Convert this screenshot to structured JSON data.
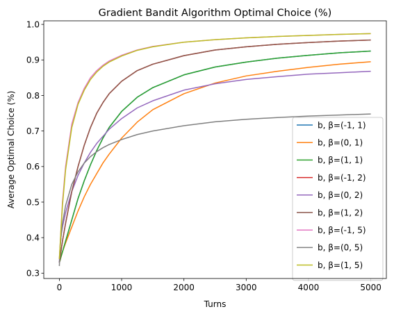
{
  "chart_data": {
    "type": "line",
    "title": "Gradient Bandit Algorithm Optimal Choice (%)",
    "xlabel": "Turns",
    "ylabel": "Average Optimal Choice (%)",
    "xlim": [
      -250,
      5250
    ],
    "ylim": [
      0.285,
      1.01
    ],
    "xticks": [
      0,
      1000,
      2000,
      3000,
      4000,
      5000
    ],
    "yticks": [
      0.3,
      0.4,
      0.5,
      0.6,
      0.7,
      0.8,
      0.9,
      1.0
    ],
    "xtick_labels": [
      "0",
      "1000",
      "2000",
      "3000",
      "4000",
      "5000"
    ],
    "ytick_labels": [
      "0.3",
      "0.4",
      "0.5",
      "0.6",
      "0.7",
      "0.8",
      "0.9",
      "1.0"
    ],
    "grid": false,
    "legend_position": "lower-right",
    "x": [
      0,
      10,
      25,
      50,
      100,
      200,
      300,
      400,
      500,
      600,
      700,
      800,
      1000,
      1250,
      1500,
      2000,
      2500,
      3000,
      3500,
      4000,
      4500,
      5000
    ],
    "series": [
      {
        "name": "b, β=(-1, 1)",
        "color": "#1f77b4",
        "values": [
          0.33,
          0.335,
          0.345,
          0.36,
          0.39,
          0.45,
          0.51,
          0.56,
          0.605,
          0.645,
          0.68,
          0.71,
          0.755,
          0.795,
          0.822,
          0.858,
          0.88,
          0.894,
          0.905,
          0.913,
          0.92,
          0.925
        ]
      },
      {
        "name": "b, β=(0, 1)",
        "color": "#ff7f0e",
        "values": [
          0.33,
          0.335,
          0.345,
          0.36,
          0.385,
          0.43,
          0.475,
          0.515,
          0.55,
          0.58,
          0.61,
          0.635,
          0.68,
          0.725,
          0.76,
          0.805,
          0.835,
          0.855,
          0.868,
          0.879,
          0.888,
          0.895
        ]
      },
      {
        "name": "b, β=(1, 1)",
        "color": "#2ca02c",
        "values": [
          0.33,
          0.335,
          0.345,
          0.36,
          0.39,
          0.45,
          0.51,
          0.56,
          0.605,
          0.645,
          0.68,
          0.71,
          0.755,
          0.795,
          0.822,
          0.858,
          0.88,
          0.894,
          0.905,
          0.913,
          0.92,
          0.925
        ]
      },
      {
        "name": "b, β=(-1, 2)",
        "color": "#d62728",
        "values": [
          0.33,
          0.34,
          0.36,
          0.39,
          0.44,
          0.53,
          0.6,
          0.66,
          0.71,
          0.75,
          0.78,
          0.805,
          0.84,
          0.87,
          0.888,
          0.912,
          0.928,
          0.937,
          0.944,
          0.949,
          0.953,
          0.956
        ]
      },
      {
        "name": "b, β=(0, 2)",
        "color": "#9467bd",
        "values": [
          0.33,
          0.37,
          0.4,
          0.43,
          0.47,
          0.53,
          0.575,
          0.61,
          0.64,
          0.665,
          0.685,
          0.705,
          0.735,
          0.765,
          0.785,
          0.815,
          0.833,
          0.845,
          0.853,
          0.86,
          0.864,
          0.868
        ]
      },
      {
        "name": "b, β=(1, 2)",
        "color": "#8c564b",
        "values": [
          0.33,
          0.34,
          0.36,
          0.39,
          0.44,
          0.53,
          0.6,
          0.66,
          0.71,
          0.75,
          0.78,
          0.805,
          0.84,
          0.87,
          0.888,
          0.912,
          0.928,
          0.937,
          0.944,
          0.949,
          0.953,
          0.956
        ]
      },
      {
        "name": "b, β=(-1, 5)",
        "color": "#e377c2",
        "values": [
          0.34,
          0.37,
          0.42,
          0.5,
          0.6,
          0.72,
          0.78,
          0.82,
          0.85,
          0.87,
          0.885,
          0.897,
          0.913,
          0.928,
          0.938,
          0.95,
          0.957,
          0.962,
          0.966,
          0.969,
          0.972,
          0.974
        ]
      },
      {
        "name": "b, β=(0, 5)",
        "color": "#7f7f7f",
        "values": [
          0.32,
          0.36,
          0.4,
          0.44,
          0.49,
          0.55,
          0.585,
          0.61,
          0.628,
          0.642,
          0.653,
          0.662,
          0.676,
          0.69,
          0.7,
          0.715,
          0.726,
          0.733,
          0.738,
          0.742,
          0.745,
          0.748
        ]
      },
      {
        "name": "b, β=(1, 5)",
        "color": "#bcbd22",
        "values": [
          0.34,
          0.37,
          0.42,
          0.49,
          0.59,
          0.71,
          0.775,
          0.815,
          0.845,
          0.866,
          0.882,
          0.894,
          0.911,
          0.927,
          0.937,
          0.95,
          0.957,
          0.962,
          0.966,
          0.969,
          0.972,
          0.974
        ]
      }
    ]
  }
}
